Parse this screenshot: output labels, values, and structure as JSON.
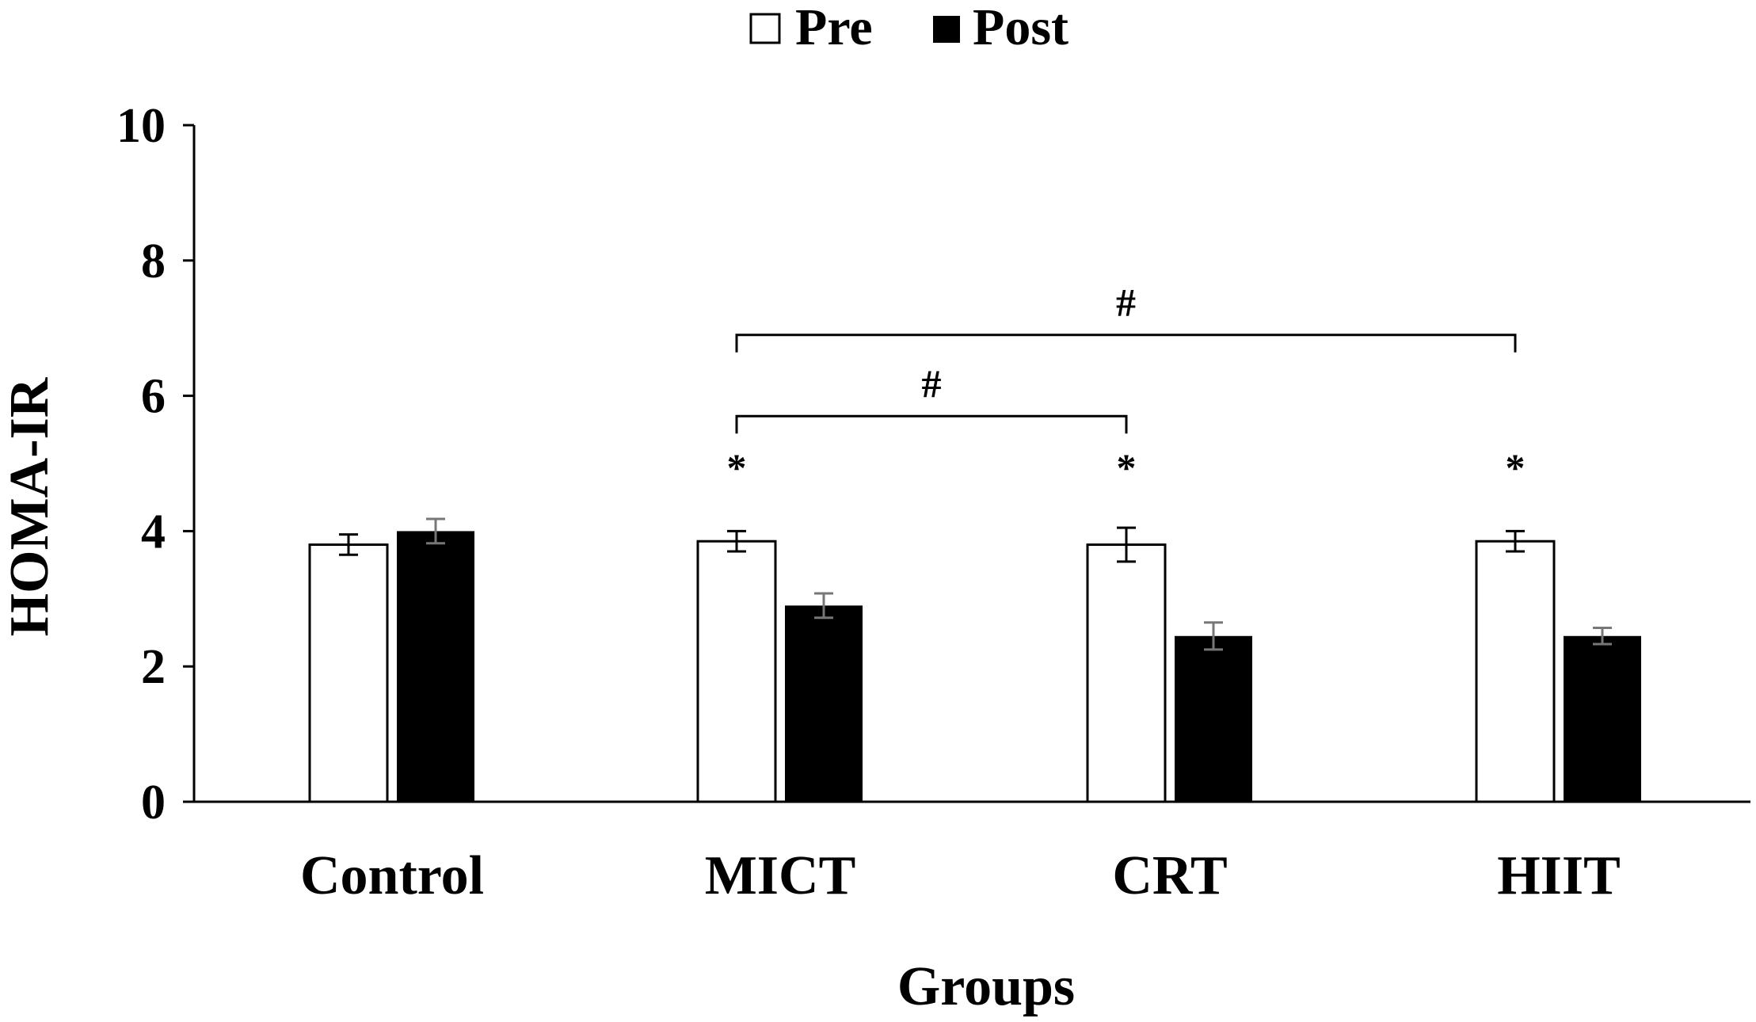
{
  "chart_data": {
    "type": "bar",
    "title": "",
    "xlabel": "Groups",
    "ylabel": "HOMA-IR",
    "ylim": [
      0,
      10
    ],
    "yticks": [
      0,
      2,
      4,
      6,
      8,
      10
    ],
    "grid": false,
    "legend_position": "top-center",
    "categories": [
      "Control",
      "MICT",
      "CRT",
      "HIIT"
    ],
    "series": [
      {
        "name": "Pre",
        "values": [
          3.8,
          3.85,
          3.8,
          3.85
        ],
        "errors": [
          0.15,
          0.15,
          0.25,
          0.15
        ],
        "fill": "#ffffff"
      },
      {
        "name": "Post",
        "values": [
          4.0,
          2.9,
          2.45,
          2.45
        ],
        "errors": [
          0.18,
          0.18,
          0.2,
          0.12
        ],
        "fill": "#000000"
      }
    ],
    "annotations": {
      "star_symbol": "*",
      "stars": [
        {
          "category": "MICT",
          "series": "Pre",
          "y": 5.0
        },
        {
          "category": "CRT",
          "series": "Pre",
          "y": 5.0
        },
        {
          "category": "HIIT",
          "series": "Pre",
          "y": 5.0
        }
      ],
      "brackets": [
        {
          "from": "MICT",
          "to": "CRT",
          "label": "#",
          "y": 5.7
        },
        {
          "from": "MICT",
          "to": "HIIT",
          "label": "#",
          "y": 6.9
        }
      ]
    }
  }
}
